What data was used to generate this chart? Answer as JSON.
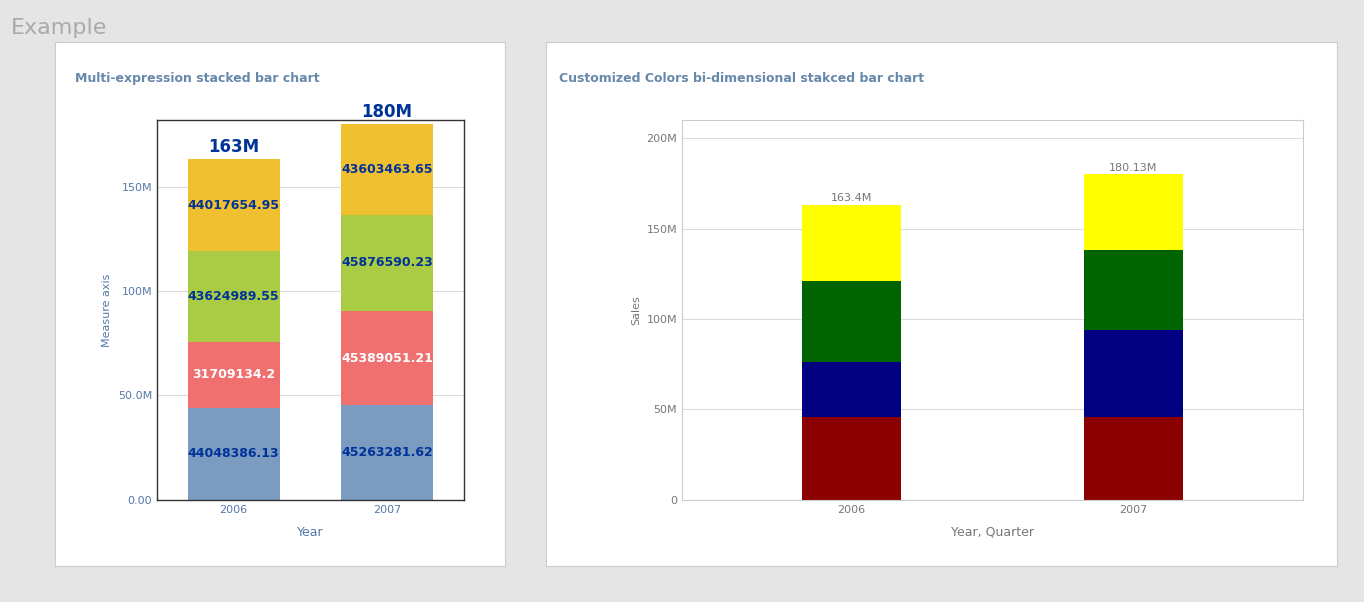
{
  "page_bg": "#e5e5e5",
  "page_title": "Example",
  "page_title_color": "#aaaaaa",
  "page_title_fontsize": 16,
  "chart1": {
    "title": "Multi-expression stacked bar chart",
    "title_color": "#6688aa",
    "title_fontsize": 9,
    "bg_color": "#ffffff",
    "plot_border_color": "#333333",
    "years": [
      "2006",
      "2007"
    ],
    "total_labels": [
      "163M",
      "180M"
    ],
    "total_label_color": "#003399",
    "total_label_fontsize": 12,
    "ylabel": "Measure axis",
    "ylabel_color": "#5577aa",
    "ylabel_fontsize": 8,
    "xlabel": "Year",
    "xlabel_color": "#5577aa",
    "xlabel_fontsize": 9,
    "ytick_labels": [
      "0.00",
      "50.0M",
      "100M",
      "150M"
    ],
    "ytick_values": [
      0,
      50000000,
      100000000,
      150000000
    ],
    "ytick_color": "#5577aa",
    "grid_color": "#dddddd",
    "xtick_color": "#5577aa",
    "bar_width": 0.6,
    "segments": [
      {
        "values": [
          44048386.13,
          45263281.62
        ],
        "color": "#7b9cc0",
        "text_color": "#003399",
        "labels": [
          "44048386.13",
          "45263281.62"
        ],
        "label_fontsize": 9
      },
      {
        "values": [
          31709134.2,
          45389051.21
        ],
        "color": "#f07070",
        "text_color": "#ffffff",
        "labels": [
          "31709134.2",
          "45389051.21"
        ],
        "label_fontsize": 9
      },
      {
        "values": [
          43624989.55,
          45876590.23
        ],
        "color": "#aacb44",
        "text_color": "#003399",
        "labels": [
          "43624989.55",
          "45876590.23"
        ],
        "label_fontsize": 9
      },
      {
        "values": [
          44017654.95,
          43603463.65
        ],
        "color": "#f0c030",
        "text_color": "#003399",
        "labels": [
          "44017654.95",
          "43603463.65"
        ],
        "label_fontsize": 9
      }
    ]
  },
  "chart2": {
    "title": "Customized Colors bi-dimensional stakced bar chart",
    "title_color": "#6688aa",
    "title_fontsize": 9,
    "bg_color": "#ffffff",
    "years": [
      "2006",
      "2007"
    ],
    "total_labels": [
      "163.4M",
      "180.13M"
    ],
    "total_label_color": "#777777",
    "total_label_fontsize": 8,
    "ylabel": "Sales",
    "ylabel_color": "#777777",
    "ylabel_fontsize": 8,
    "xlabel": "Year, Quarter",
    "xlabel_color": "#777777",
    "xlabel_fontsize": 9,
    "ytick_labels": [
      "0",
      "50M",
      "100M",
      "150M",
      "200M"
    ],
    "ytick_values": [
      0,
      50000000,
      100000000,
      150000000,
      200000000
    ],
    "ytick_color": "#777777",
    "grid_color": "#dddddd",
    "xtick_color": "#777777",
    "bar_width": 0.35,
    "segments": [
      {
        "values": [
          46000000,
          46000000
        ],
        "color": "#8b0000"
      },
      {
        "values": [
          30000000,
          48000000
        ],
        "color": "#000080"
      },
      {
        "values": [
          45000000,
          44000000
        ],
        "color": "#006400"
      },
      {
        "values": [
          42400000,
          42130000
        ],
        "color": "#ffff00"
      }
    ]
  }
}
